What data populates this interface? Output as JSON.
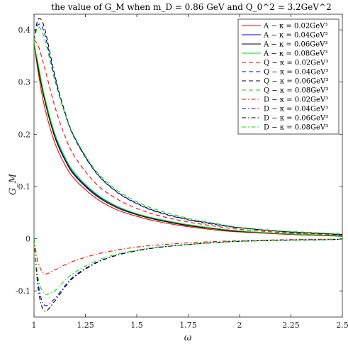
{
  "chart_data": {
    "type": "line",
    "title": "the value of G_M when m_D = 0.86 GeV and Q_0^2 = 3.2GeV^2",
    "xlabel": "ω",
    "ylabel": "G_M",
    "xlim": [
      1,
      2.5
    ],
    "ylim": [
      -0.15,
      0.43
    ],
    "x_ticks": [
      1,
      1.25,
      1.5,
      1.75,
      2,
      2.25,
      2.5
    ],
    "x_tick_labels": [
      "1",
      "1.25",
      "1.5",
      "1.75",
      "2",
      "2.25",
      "2.5"
    ],
    "y_ticks": [
      -0.1,
      0,
      0.1,
      0.2,
      0.3,
      0.4
    ],
    "y_tick_labels": [
      "-0.1",
      "0",
      "0.1",
      "0.2",
      "0.3",
      "0.4"
    ],
    "grid": false,
    "legend_position": "top-right",
    "x": [
      1.0,
      1.02,
      1.05,
      1.1,
      1.15,
      1.2,
      1.3,
      1.4,
      1.5,
      1.6,
      1.75,
      1.9,
      2.0,
      2.2,
      2.4,
      2.5
    ],
    "series": [
      {
        "name": "A − κ = 0.02GeV³",
        "color": "#ff0000",
        "dash": "solid",
        "values": [
          0.375,
          0.32,
          0.255,
          0.185,
          0.142,
          0.113,
          0.078,
          0.056,
          0.043,
          0.033,
          0.023,
          0.016,
          0.013,
          0.009,
          0.006,
          0.005
        ]
      },
      {
        "name": "A − κ = 0.04GeV³",
        "color": "#0000ff",
        "dash": "solid",
        "values": [
          0.375,
          0.33,
          0.27,
          0.198,
          0.153,
          0.122,
          0.085,
          0.062,
          0.047,
          0.037,
          0.026,
          0.018,
          0.014,
          0.01,
          0.007,
          0.005
        ]
      },
      {
        "name": "A − κ = 0.06GeV³",
        "color": "#000000",
        "dash": "solid",
        "values": [
          0.375,
          0.328,
          0.268,
          0.196,
          0.151,
          0.12,
          0.083,
          0.06,
          0.046,
          0.036,
          0.025,
          0.018,
          0.014,
          0.01,
          0.007,
          0.005
        ]
      },
      {
        "name": "A − κ = 0.08GeV³",
        "color": "#00dd00",
        "dash": "solid",
        "values": [
          0.375,
          0.335,
          0.275,
          0.203,
          0.157,
          0.125,
          0.087,
          0.063,
          0.048,
          0.038,
          0.027,
          0.019,
          0.015,
          0.01,
          0.007,
          0.006
        ]
      },
      {
        "name": "Q − κ = 0.02GeV³",
        "color": "#ff0000",
        "dash": "dashed",
        "values": [
          0.38,
          0.37,
          0.33,
          0.255,
          0.197,
          0.156,
          0.106,
          0.077,
          0.058,
          0.045,
          0.032,
          0.023,
          0.018,
          0.012,
          0.009,
          0.007
        ]
      },
      {
        "name": "Q − κ = 0.04GeV³",
        "color": "#0000ff",
        "dash": "dashed",
        "values": [
          0.38,
          0.41,
          0.395,
          0.31,
          0.24,
          0.19,
          0.127,
          0.09,
          0.067,
          0.051,
          0.036,
          0.026,
          0.021,
          0.014,
          0.01,
          0.008
        ]
      },
      {
        "name": "Q − κ = 0.06GeV³",
        "color": "#000000",
        "dash": "dashed",
        "values": [
          0.38,
          0.42,
          0.405,
          0.315,
          0.243,
          0.192,
          0.128,
          0.091,
          0.068,
          0.052,
          0.037,
          0.027,
          0.021,
          0.014,
          0.01,
          0.008
        ]
      },
      {
        "name": "Q − κ = 0.08GeV³",
        "color": "#00dd00",
        "dash": "dashed",
        "values": [
          0.38,
          0.405,
          0.385,
          0.305,
          0.24,
          0.193,
          0.131,
          0.094,
          0.071,
          0.055,
          0.039,
          0.028,
          0.022,
          0.015,
          0.011,
          0.009
        ]
      },
      {
        "name": "D − κ = 0.02GeV³",
        "color": "#ff0000",
        "dash": "dashdot",
        "values": [
          0.0,
          -0.045,
          -0.067,
          -0.06,
          -0.05,
          -0.042,
          -0.03,
          -0.022,
          -0.016,
          -0.012,
          -0.008,
          -0.005,
          -0.004,
          -0.002,
          -0.001,
          -0.001
        ]
      },
      {
        "name": "D − κ = 0.04GeV³",
        "color": "#0000ff",
        "dash": "dashdot",
        "values": [
          0.0,
          -0.085,
          -0.127,
          -0.115,
          -0.09,
          -0.07,
          -0.046,
          -0.032,
          -0.023,
          -0.017,
          -0.011,
          -0.007,
          -0.005,
          -0.003,
          -0.002,
          -0.001
        ]
      },
      {
        "name": "D − κ = 0.06GeV³",
        "color": "#000000",
        "dash": "dashdot",
        "values": [
          0.0,
          -0.095,
          -0.138,
          -0.12,
          -0.093,
          -0.072,
          -0.047,
          -0.032,
          -0.023,
          -0.017,
          -0.011,
          -0.007,
          -0.005,
          -0.003,
          -0.002,
          -0.001
        ]
      },
      {
        "name": "D − κ = 0.08GeV³",
        "color": "#00dd00",
        "dash": "dashdot",
        "values": [
          0.0,
          -0.075,
          -0.105,
          -0.1,
          -0.08,
          -0.064,
          -0.043,
          -0.03,
          -0.022,
          -0.016,
          -0.011,
          -0.007,
          -0.005,
          -0.003,
          -0.002,
          -0.001
        ]
      }
    ]
  }
}
